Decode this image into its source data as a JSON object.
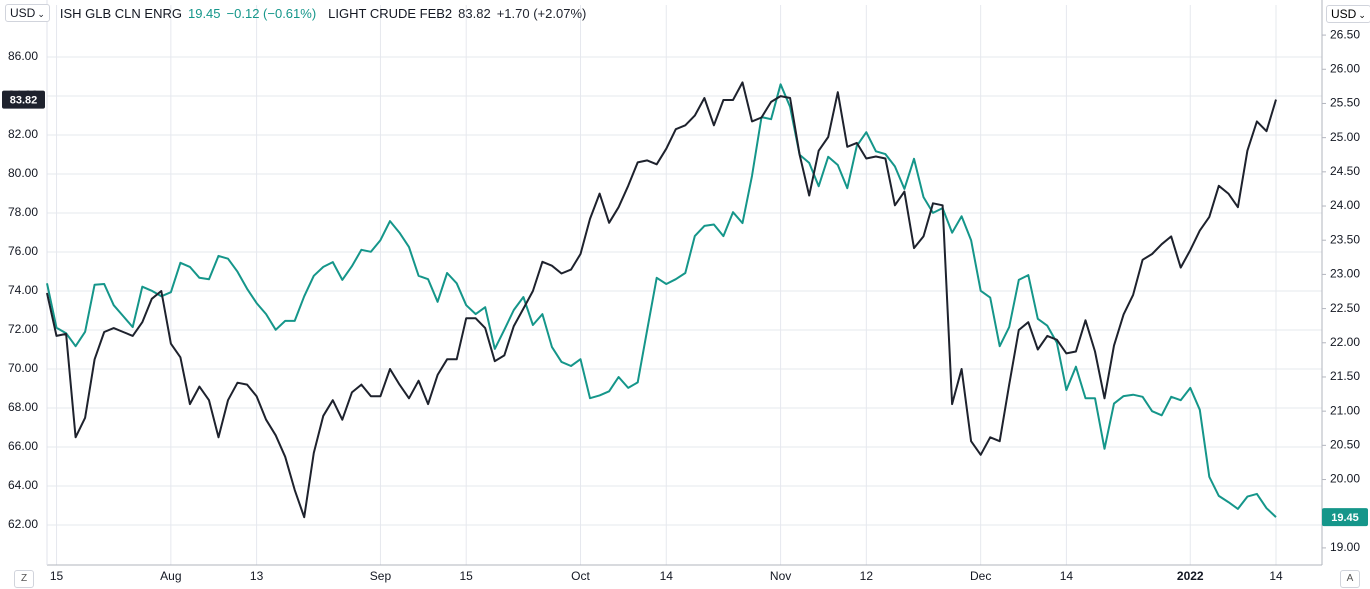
{
  "chart_data": {
    "type": "line",
    "currency": "USD",
    "zoom_button": "Z",
    "auto_button": "A",
    "categories": [
      null,
      "15",
      null,
      null,
      null,
      null,
      null,
      null,
      null,
      null,
      null,
      null,
      null,
      "Aug",
      null,
      null,
      null,
      null,
      null,
      null,
      null,
      null,
      "13",
      null,
      null,
      null,
      null,
      null,
      null,
      null,
      null,
      null,
      null,
      null,
      null,
      "Sep",
      null,
      null,
      null,
      null,
      null,
      null,
      null,
      null,
      "15",
      null,
      null,
      null,
      null,
      null,
      null,
      null,
      null,
      null,
      null,
      null,
      "Oct",
      null,
      null,
      null,
      null,
      null,
      null,
      null,
      null,
      "14",
      null,
      null,
      null,
      null,
      null,
      null,
      null,
      null,
      null,
      null,
      null,
      "Nov",
      null,
      null,
      null,
      null,
      null,
      null,
      null,
      null,
      "12",
      null,
      null,
      null,
      null,
      null,
      null,
      null,
      null,
      null,
      null,
      null,
      "Dec",
      null,
      null,
      null,
      null,
      null,
      null,
      null,
      null,
      "14",
      null,
      null,
      null,
      null,
      null,
      null,
      null,
      null,
      null,
      null,
      null,
      null,
      "2022",
      null,
      null,
      null,
      null,
      null,
      null,
      null,
      null,
      "14"
    ],
    "series": [
      {
        "name": "ISH GLB CLN ENRG",
        "color": "#15968a",
        "axis": "y2",
        "change": "−0.12 (−0.61%)",
        "values": [
          22.87,
          22.22,
          22.14,
          21.95,
          22.16,
          22.85,
          22.86,
          22.55,
          22.39,
          22.23,
          22.82,
          22.76,
          22.68,
          22.74,
          23.17,
          23.11,
          22.95,
          22.93,
          23.27,
          23.23,
          23.04,
          22.79,
          22.58,
          22.42,
          22.19,
          22.32,
          22.32,
          22.68,
          22.98,
          23.11,
          23.18,
          22.92,
          23.12,
          23.36,
          23.33,
          23.5,
          23.78,
          23.61,
          23.4,
          22.98,
          22.93,
          22.6,
          23.02,
          22.87,
          22.55,
          22.42,
          22.52,
          21.91,
          22.19,
          22.48,
          22.67,
          22.26,
          22.42,
          21.94,
          21.72,
          21.66,
          21.76,
          21.19,
          21.23,
          21.29,
          21.5,
          21.34,
          21.42,
          22.19,
          22.95,
          22.86,
          22.93,
          23.02,
          23.56,
          23.71,
          23.73,
          23.56,
          23.91,
          23.75,
          24.44,
          25.3,
          25.27,
          25.78,
          25.45,
          24.75,
          24.63,
          24.29,
          24.72,
          24.6,
          24.26,
          24.88,
          25.08,
          24.8,
          24.76,
          24.58,
          24.25,
          24.69,
          24.13,
          23.9,
          23.97,
          23.61,
          23.85,
          23.5,
          22.76,
          22.66,
          21.95,
          22.23,
          22.92,
          22.99,
          22.35,
          22.25,
          22.0,
          21.31,
          21.65,
          21.19,
          21.19,
          20.45,
          21.11,
          21.22,
          21.24,
          21.21,
          21.0,
          20.94,
          21.21,
          21.16,
          21.34,
          21.02,
          20.04,
          19.76,
          19.67,
          19.57,
          19.75,
          19.79,
          19.58,
          19.45
        ]
      },
      {
        "name": "LIGHT CRUDE FEB2",
        "color": "#1e222d",
        "axis": "y",
        "change": "+1.70 (+2.07%)",
        "values": [
          73.9,
          71.7,
          71.8,
          66.5,
          67.5,
          70.5,
          71.9,
          72.1,
          71.9,
          71.7,
          72.4,
          73.6,
          74,
          71.3,
          70.6,
          68.2,
          69.1,
          68.4,
          66.5,
          68.4,
          69.3,
          69.2,
          68.6,
          67.4,
          66.6,
          65.5,
          63.8,
          62.4,
          65.7,
          67.6,
          68.4,
          67.4,
          68.8,
          69.2,
          68.6,
          68.6,
          70,
          69.2,
          68.5,
          69.4,
          68.2,
          69.7,
          70.5,
          70.5,
          72.6,
          72.6,
          72.1,
          70.4,
          70.7,
          72.2,
          73.1,
          74,
          75.5,
          75.3,
          74.9,
          75.1,
          75.9,
          77.7,
          79,
          77.5,
          78.3,
          79.4,
          80.6,
          80.7,
          80.5,
          81.3,
          82.3,
          82.5,
          83,
          83.9,
          82.5,
          83.8,
          83.8,
          84.7,
          82.7,
          82.9,
          83.7,
          84,
          83.9,
          81,
          78.9,
          81.2,
          81.9,
          84.2,
          81.4,
          81.6,
          80.8,
          80.9,
          80.8,
          78.4,
          79.1,
          76.2,
          76.8,
          78.5,
          78.4,
          68.2,
          70,
          66.3,
          65.6,
          66.5,
          66.3,
          69.2,
          72,
          72.4,
          71,
          71.7,
          71.5,
          70.8,
          70.9,
          72.5,
          70.9,
          68.5,
          71.2,
          72.8,
          73.8,
          75.6,
          75.9,
          76.4,
          76.8,
          75.2,
          76.1,
          77.1,
          77.8,
          79.4,
          79,
          78.3,
          81.2,
          82.7,
          82.2,
          83.82
        ]
      }
    ],
    "ylim": [
      59.95,
      88.67
    ],
    "yticks": [
      {
        "value": 62,
        "label": "62.00"
      },
      {
        "value": 64,
        "label": "64.00"
      },
      {
        "value": 66,
        "label": "66.00"
      },
      {
        "value": 68,
        "label": "68.00"
      },
      {
        "value": 70,
        "label": "70.00"
      },
      {
        "value": 72,
        "label": "72.00"
      },
      {
        "value": 74,
        "label": "74.00"
      },
      {
        "value": 76,
        "label": "76.00"
      },
      {
        "value": 78,
        "label": "78.00"
      },
      {
        "value": 80,
        "label": "80.00"
      },
      {
        "value": 82,
        "label": "82.00"
      },
      {
        "value": 84,
        "label": "84.00"
      },
      {
        "value": 86,
        "label": "86.00"
      }
    ],
    "y2lim": [
      18.75,
      26.94
    ],
    "y2ticks": [
      {
        "value": 19,
        "label": "19.00"
      },
      19.5,
      {
        "value": 20,
        "label": "20.00"
      },
      20.5,
      {
        "value": 21,
        "label": "21.00"
      },
      21.5,
      {
        "value": 22,
        "label": "22.00"
      },
      22.5,
      {
        "value": 23,
        "label": "23.00"
      },
      23.5,
      {
        "value": 24,
        "label": "24.00"
      },
      24.5,
      {
        "value": 25,
        "label": "25.00"
      },
      25.5,
      {
        "value": 26,
        "label": "26.00"
      },
      26.5
    ],
    "grid": true
  }
}
